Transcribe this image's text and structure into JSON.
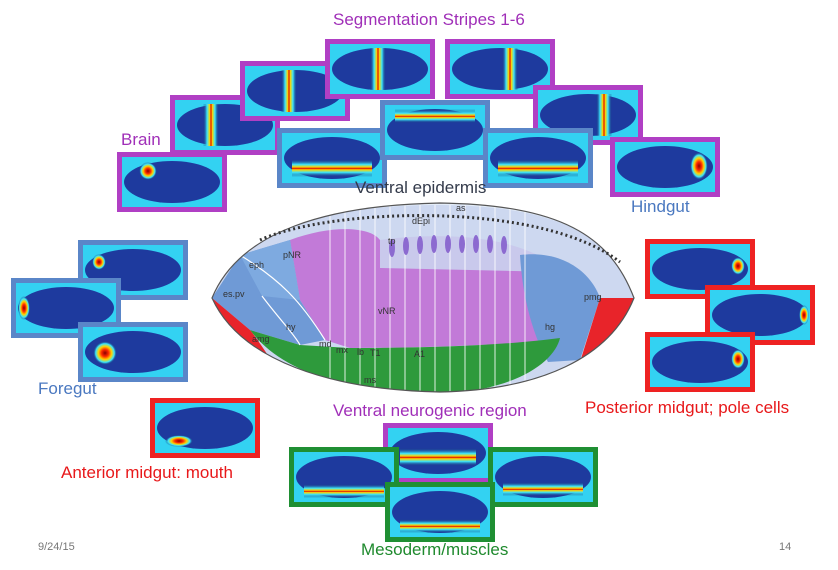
{
  "labels": {
    "segmentation": "Segmentation Stripes 1-6",
    "brain": "Brain",
    "ventral_epidermis": "Ventral epidermis",
    "hindgut": "Hindgut",
    "foregut": "Foregut",
    "posterior_midgut": "Posterior midgut; pole cells",
    "ventral_neurogenic": "Ventral neurogenic region",
    "anterior_midgut": "Anterior midgut: mouth",
    "mesoderm": "Mesoderm/muscles"
  },
  "embryo_labels": {
    "as": "as",
    "dEpi": "dEpi",
    "tp": "tp",
    "pNR": "pNR",
    "eph": "eph",
    "es_pv": "es.pv",
    "amg": "amg",
    "hy": "hy",
    "vNR": "vNR",
    "md": "md",
    "mx": "mx",
    "lb": "lb",
    "T1": "T1",
    "A1": "A1",
    "ms": "ms",
    "hg": "hg",
    "pmg": "pmg"
  },
  "footer": {
    "date": "9/24/15",
    "page": "14"
  },
  "colors": {
    "purple": "#b03fc4",
    "blue": "#5a86c8",
    "red": "#ee2222",
    "green": "#1f8f33",
    "ocean": "#1e3a9e",
    "cyan": "#33d2f2"
  }
}
